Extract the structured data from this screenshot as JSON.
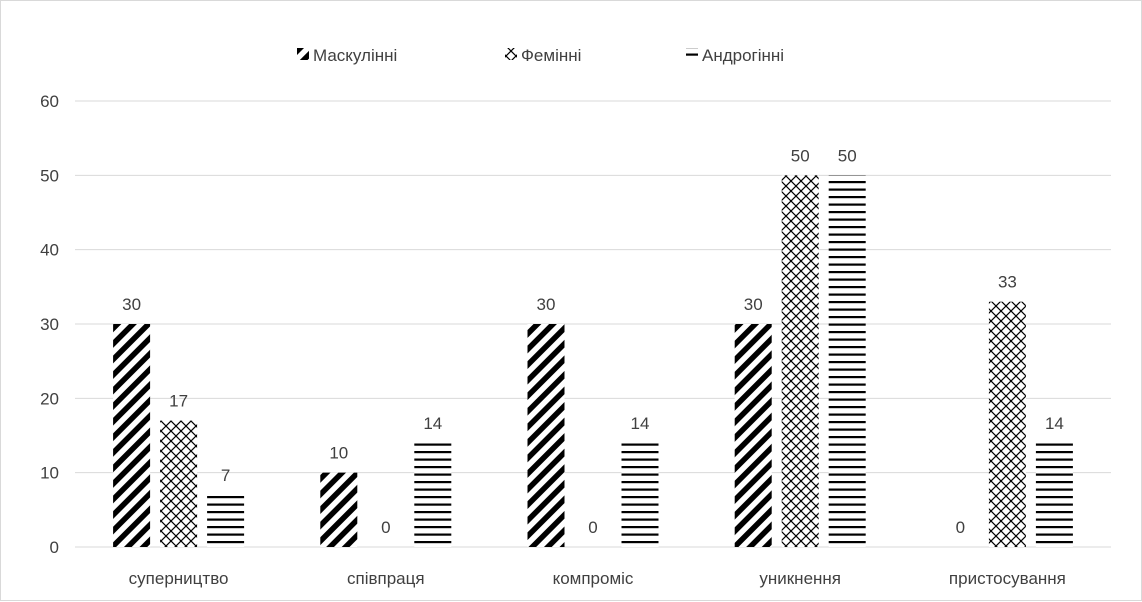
{
  "chart_data": {
    "type": "bar",
    "categories": [
      "суперництво",
      "співпраця",
      "компроміс",
      "уникнення",
      "пристосування"
    ],
    "series": [
      {
        "name": "Маскулінні",
        "values": [
          30,
          10,
          30,
          30,
          0
        ],
        "pattern": "diagonal-stripes"
      },
      {
        "name": "Фемінні",
        "values": [
          17,
          0,
          0,
          50,
          33
        ],
        "pattern": "crosshatch"
      },
      {
        "name": "Андрогінні",
        "values": [
          7,
          14,
          14,
          50,
          14
        ],
        "pattern": "horizontal-stripes"
      }
    ],
    "value_labels": [
      [
        "30",
        "10",
        "30",
        "30",
        "0"
      ],
      [
        "17",
        "0",
        "0",
        "50",
        "33"
      ],
      [
        "7",
        "14",
        "14",
        "50",
        "14"
      ]
    ],
    "y_ticks": [
      "0",
      "10",
      "20",
      "30",
      "40",
      "50",
      "60"
    ],
    "ylim": [
      0,
      60
    ],
    "grid": true,
    "legend_position": "top",
    "colors": {
      "ink": "#000000",
      "grid": "#d9d9d9",
      "text": "#404040"
    }
  }
}
